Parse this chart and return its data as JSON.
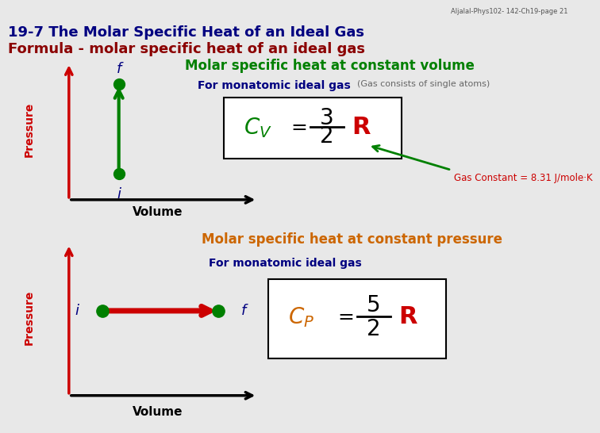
{
  "title_line1": "19-7 The Molar Specific Heat of an Ideal Gas",
  "title_line2": "Formula - molar specific heat of an ideal gas",
  "title_color1": "#000080",
  "title_color2": "#8B0000",
  "watermark": "Aljalal-Phys102- 142-Ch19-page 21",
  "bg_color": "#E8E8E8",
  "panel_bg": "#FFFFFF",
  "box1_title": "Molar specific heat at constant volume",
  "box1_title_color": "#008000",
  "box1_sub": "For monatomic ideal gas",
  "box1_sub_color": "#000080",
  "box1_sub2": "(Gas consists of single atoms)",
  "box1_sub2_color": "#666666",
  "box1_gas_constant": "Gas Constant = 8.31 J/mole·K",
  "box1_gas_constant_color": "#CC0000",
  "box2_title": "Molar specific heat at constant pressure",
  "box2_title_color": "#CC6600",
  "box2_sub": "For monatomic ideal gas",
  "box2_sub_color": "#000080",
  "green_color": "#008000",
  "red_color": "#CC0000",
  "dark_red": "#CC0000",
  "black": "#000000",
  "navy": "#000080",
  "border_color": "#999999"
}
